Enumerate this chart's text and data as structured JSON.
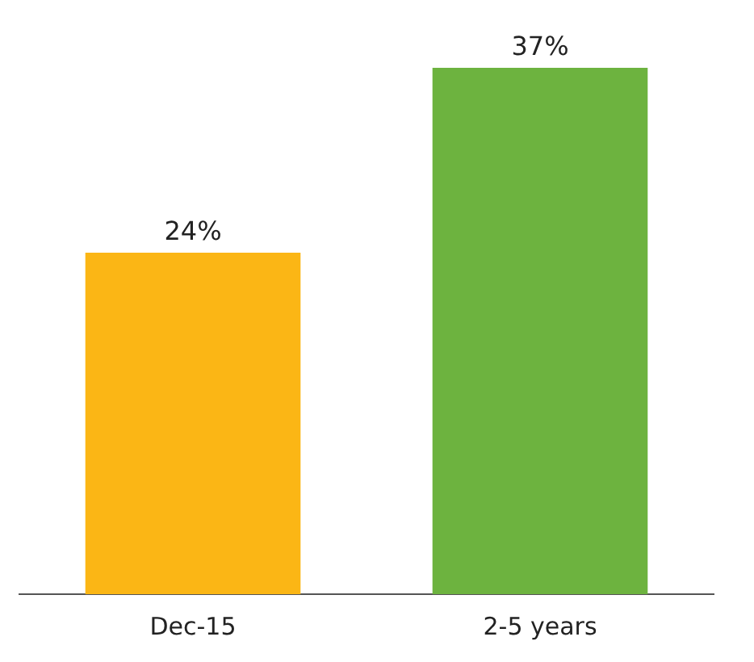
{
  "chart_data": {
    "type": "bar",
    "categories": [
      "Dec-15",
      "2-5 years"
    ],
    "values": [
      24,
      37
    ],
    "colors": [
      "#fbb615",
      "#6db33f"
    ],
    "value_labels": [
      "24%",
      "37%"
    ],
    "grid": false,
    "legend": false
  }
}
